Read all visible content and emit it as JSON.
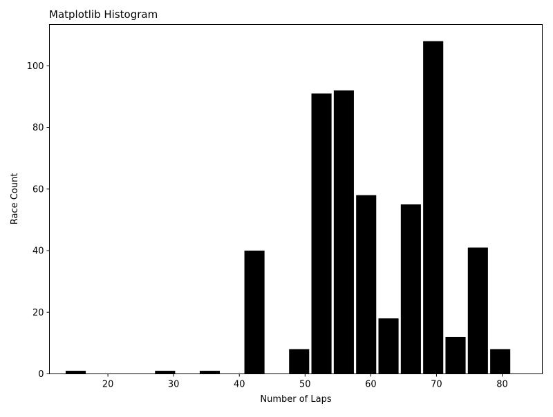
{
  "chart_data": {
    "type": "bar",
    "title": "Matplotlib Histogram",
    "xlabel": "Number of Laps",
    "ylabel": "Race Count",
    "xlim": [
      11.1,
      86.1
    ],
    "ylim": [
      0,
      113.4
    ],
    "xticks": [
      20,
      30,
      40,
      50,
      60,
      70,
      80
    ],
    "yticks": [
      0,
      20,
      40,
      60,
      80,
      100
    ],
    "bin_width": 3.4,
    "bar_width_fraction": 0.9,
    "bar_color": "#000000",
    "grid": false,
    "legend": "none",
    "bins": [
      {
        "center": 15.1,
        "value": 1
      },
      {
        "center": 18.5,
        "value": 0
      },
      {
        "center": 21.9,
        "value": 0
      },
      {
        "center": 25.3,
        "value": 0
      },
      {
        "center": 28.7,
        "value": 1
      },
      {
        "center": 32.1,
        "value": 0
      },
      {
        "center": 35.5,
        "value": 1
      },
      {
        "center": 38.9,
        "value": 0
      },
      {
        "center": 42.3,
        "value": 40
      },
      {
        "center": 45.7,
        "value": 0
      },
      {
        "center": 49.1,
        "value": 8
      },
      {
        "center": 52.5,
        "value": 91
      },
      {
        "center": 55.9,
        "value": 92
      },
      {
        "center": 59.3,
        "value": 58
      },
      {
        "center": 62.7,
        "value": 18
      },
      {
        "center": 66.1,
        "value": 55
      },
      {
        "center": 69.5,
        "value": 108
      },
      {
        "center": 72.9,
        "value": 12
      },
      {
        "center": 76.3,
        "value": 41
      },
      {
        "center": 79.7,
        "value": 8
      }
    ]
  }
}
